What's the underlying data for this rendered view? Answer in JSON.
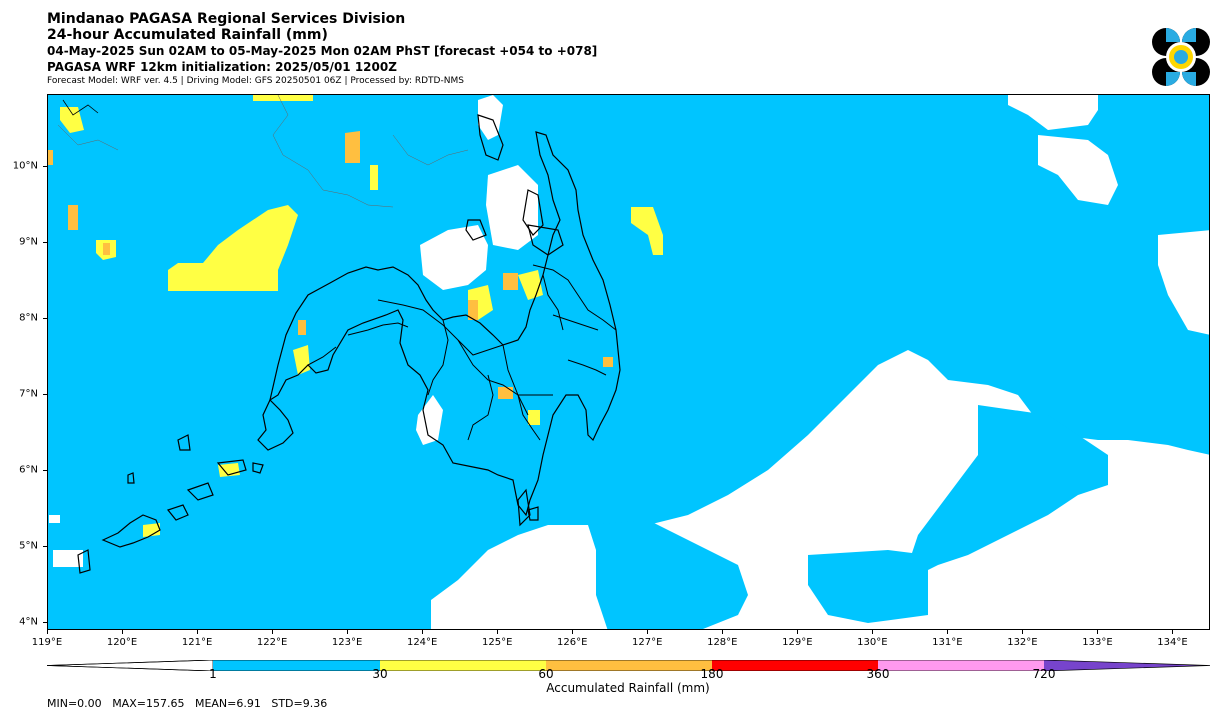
{
  "header": {
    "line1": "Mindanao PAGASA Regional Services Division",
    "line2": "24-hour Accumulated Rainfall (mm)",
    "line3": "04-May-2025 Sun 02AM to 05-May-2025 Mon 02AM PhST [forecast +054 to +078]",
    "line4": "PAGASA WRF 12km initialization: 2025/05/01 1200Z",
    "line5": "Forecast Model: WRF ver. 4.5 | Driving Model: GFS 20250501 06Z | Processed by: RDTD-NMS"
  },
  "logo": {
    "icon": "pagasa-logo-icon",
    "colors": [
      "#000000",
      "#29abe2",
      "#ffd700"
    ]
  },
  "map": {
    "x_ticks": [
      "119°E",
      "120°E",
      "121°E",
      "122°E",
      "123°E",
      "124°E",
      "125°E",
      "126°E",
      "127°E",
      "128°E",
      "129°E",
      "130°E",
      "131°E",
      "132°E",
      "133°E",
      "134°E"
    ],
    "y_ticks": [
      "10°N",
      "9°N",
      "8°N",
      "7°N",
      "6°N",
      "5°N",
      "4°N"
    ],
    "lon_range": [
      119,
      134.5
    ],
    "lat_range": [
      3.9,
      10.95
    ]
  },
  "colorbar": {
    "labels": [
      "1",
      "30",
      "60",
      "180",
      "360",
      "720"
    ],
    "title": "Accumulated Rainfall (mm)",
    "colors": {
      "below": "#ffffff",
      "1-30": "#00c5ff",
      "30-60": "#ffff44",
      "60-180": "#ffbf40",
      "180-360": "#ff0000",
      "360-720": "#ff99ee",
      "above": "#7744cc"
    }
  },
  "stats": {
    "min": "MIN=0.00",
    "max": "MAX=157.65",
    "mean": "MEAN=6.91",
    "std": "STD=9.36"
  }
}
